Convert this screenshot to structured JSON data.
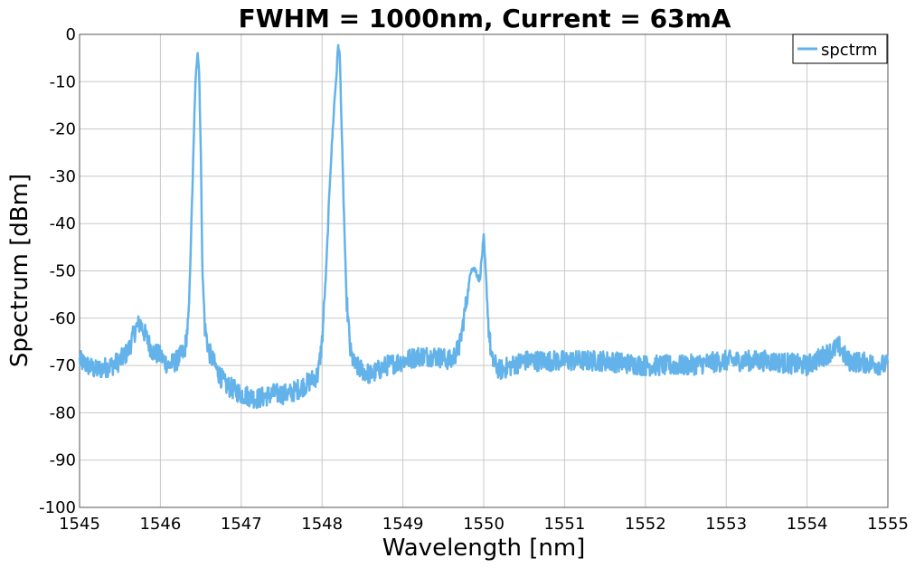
{
  "chart_data": {
    "type": "line",
    "title": "FWHM = 1000nm, Current = 63mA",
    "xlabel": "Wavelength [nm]",
    "ylabel": "Spectrum [dBm]",
    "xlim": [
      1545,
      1555
    ],
    "ylim": [
      -100,
      0
    ],
    "xticks": [
      "1545",
      "1546",
      "1547",
      "1548",
      "1549",
      "1550",
      "1551",
      "1552",
      "1553",
      "1554",
      "1555"
    ],
    "yticks": [
      "0",
      "-10",
      "-20",
      "-30",
      "-40",
      "-50",
      "-60",
      "-70",
      "-80",
      "-90",
      "-100"
    ],
    "grid": true,
    "legend": "top-right",
    "series": [
      {
        "name": "spctrm",
        "color": "#63b3ea",
        "x": [
          1545.0,
          1545.2,
          1545.4,
          1545.5,
          1545.6,
          1545.7,
          1545.75,
          1545.8,
          1545.9,
          1546.0,
          1546.1,
          1546.2,
          1546.3,
          1546.35,
          1546.4,
          1546.43,
          1546.46,
          1546.48,
          1546.5,
          1546.52,
          1546.55,
          1546.6,
          1546.7,
          1546.8,
          1547.0,
          1547.2,
          1547.4,
          1547.6,
          1547.8,
          1547.95,
          1548.0,
          1548.05,
          1548.1,
          1548.15,
          1548.18,
          1548.2,
          1548.22,
          1548.25,
          1548.3,
          1548.35,
          1548.4,
          1548.5,
          1548.6,
          1548.8,
          1549.0,
          1549.2,
          1549.4,
          1549.6,
          1549.7,
          1549.8,
          1549.85,
          1549.9,
          1549.95,
          1550.0,
          1550.03,
          1550.06,
          1550.1,
          1550.2,
          1550.5,
          1551.0,
          1551.5,
          1552.0,
          1552.5,
          1553.0,
          1553.5,
          1554.0,
          1554.4,
          1554.5,
          1555.0
        ],
        "values": [
          -69,
          -71,
          -70,
          -69,
          -67,
          -62,
          -61,
          -63,
          -67,
          -68,
          -70,
          -69,
          -67,
          -60,
          -30,
          -12,
          -3,
          -8,
          -25,
          -50,
          -62,
          -67,
          -71,
          -74,
          -76,
          -77,
          -76,
          -76,
          -74,
          -72,
          -65,
          -50,
          -30,
          -15,
          -8,
          -2,
          -5,
          -25,
          -55,
          -67,
          -70,
          -71,
          -72,
          -70,
          -69,
          -68,
          -68,
          -69,
          -66,
          -55,
          -49,
          -50,
          -52,
          -43,
          -52,
          -62,
          -69,
          -71,
          -69,
          -69,
          -69,
          -70,
          -70,
          -69,
          -69,
          -70,
          -66,
          -69,
          -70
        ]
      }
    ]
  }
}
